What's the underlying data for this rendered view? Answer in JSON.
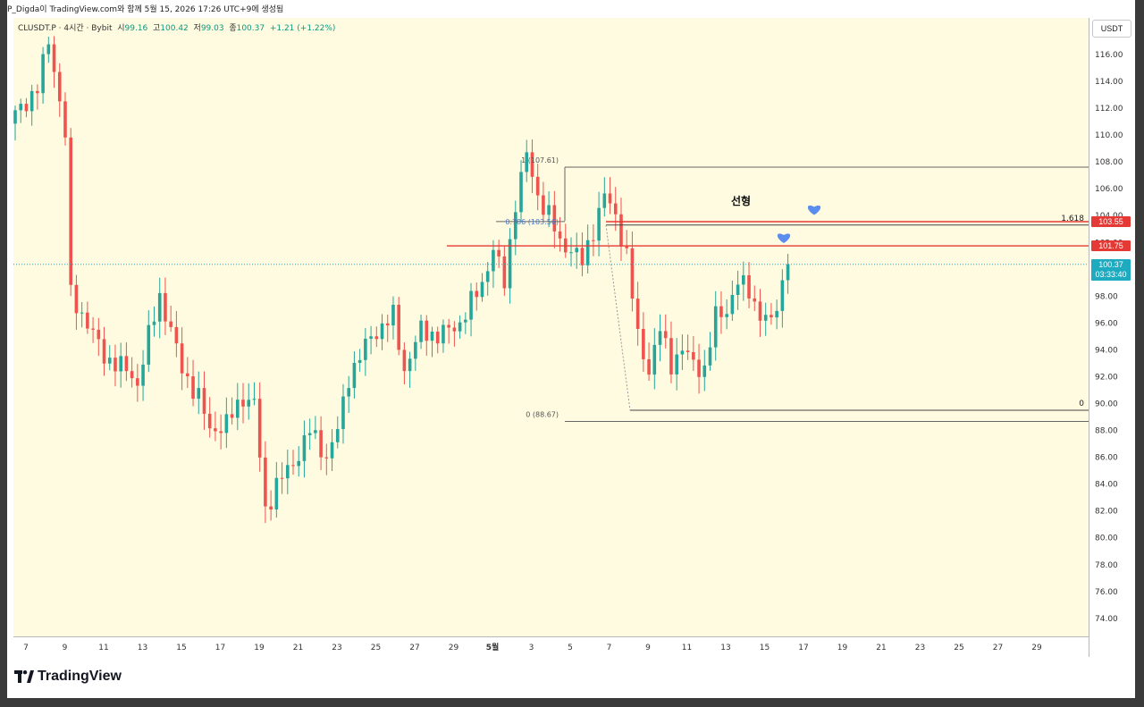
{
  "caption": "P_Digda이 TradingView.com와 함께 5월 15, 2026 17:26 UTC+9에 생성됨",
  "legend": {
    "symbol": "CLUSDT.P · 4시간 · Bybit",
    "o_label": "시",
    "o": "99.16",
    "h_label": "고",
    "h": "100.42",
    "l_label": "저",
    "l": "99.03",
    "c_label": "종",
    "c": "100.37",
    "chg": "+1.21 (+1.22%)"
  },
  "unit": "USDT",
  "brand": "TradingView",
  "colors": {
    "up": "#26a69a",
    "down": "#ef5350",
    "plot_bg": "#fffbe0",
    "line_red": "#e53935",
    "heart": "#5b8def"
  },
  "chart_data": {
    "type": "candlestick",
    "ylim": [
      72,
      118
    ],
    "y_ticks": [
      "116.00",
      "114.00",
      "112.00",
      "110.00",
      "108.00",
      "106.00",
      "104.00",
      "102.00",
      "100.00",
      "98.00",
      "96.00",
      "94.00",
      "92.00",
      "90.00",
      "88.00",
      "86.00",
      "84.00",
      "82.00",
      "80.00",
      "78.00",
      "76.00",
      "74.00"
    ],
    "x_ticks": [
      "7",
      "9",
      "11",
      "13",
      "15",
      "17",
      "19",
      "21",
      "23",
      "25",
      "27",
      "29",
      "5월",
      "3",
      "5",
      "7",
      "9",
      "11",
      "13",
      "15",
      "17",
      "19",
      "21",
      "23",
      "25",
      "27",
      "29"
    ],
    "fib_labels": {
      "top": "1 (107.61)",
      "mid": "0.786 (103.56)",
      "bottom": "0 (88.67)",
      "ext": "1.618",
      "zero": "0"
    },
    "annotation": "선형",
    "levels": [
      {
        "label": "103.55",
        "value": 103.55
      },
      {
        "label": "101.75",
        "value": 101.75
      }
    ],
    "last_price": {
      "value": "100.37",
      "countdown": "03:33:40"
    },
    "keypoints": [
      [
        0,
        111.5
      ],
      [
        4,
        113.5
      ],
      [
        6,
        117
      ],
      [
        7,
        115
      ],
      [
        9,
        110
      ],
      [
        10,
        98
      ],
      [
        13,
        96
      ],
      [
        16,
        93.5
      ],
      [
        20,
        92.5
      ],
      [
        22,
        91.5
      ],
      [
        24,
        95
      ],
      [
        26,
        98
      ],
      [
        28,
        95.5
      ],
      [
        30,
        92.5
      ],
      [
        33,
        90.5
      ],
      [
        35,
        88
      ],
      [
        38,
        88.5
      ],
      [
        41,
        90.5
      ],
      [
        43,
        90
      ],
      [
        45,
        82
      ],
      [
        47,
        84
      ],
      [
        50,
        85.5
      ],
      [
        53,
        88
      ],
      [
        56,
        86
      ],
      [
        58,
        88
      ],
      [
        60,
        92
      ],
      [
        64,
        95
      ],
      [
        68,
        96.5
      ],
      [
        70,
        92.5
      ],
      [
        73,
        95.5
      ],
      [
        76,
        95
      ],
      [
        80,
        96
      ],
      [
        84,
        99
      ],
      [
        86,
        101.5
      ],
      [
        88,
        99
      ],
      [
        90,
        105
      ],
      [
        92,
        108.5
      ],
      [
        94,
        105.5
      ],
      [
        96,
        104
      ],
      [
        98,
        102
      ],
      [
        100,
        101.5
      ],
      [
        102,
        100.5
      ],
      [
        104,
        103
      ],
      [
        106,
        105.5
      ],
      [
        108,
        104
      ],
      [
        110,
        101
      ],
      [
        112,
        95
      ],
      [
        114,
        92.5
      ],
      [
        116,
        95.5
      ],
      [
        118,
        93
      ],
      [
        120,
        94
      ],
      [
        122,
        93
      ],
      [
        124,
        92.5
      ],
      [
        126,
        96.5
      ],
      [
        128,
        97
      ],
      [
        130,
        99
      ],
      [
        132,
        98.5
      ],
      [
        134,
        96.5
      ],
      [
        136,
        96
      ],
      [
        138,
        99
      ],
      [
        139,
        100.37
      ]
    ]
  }
}
